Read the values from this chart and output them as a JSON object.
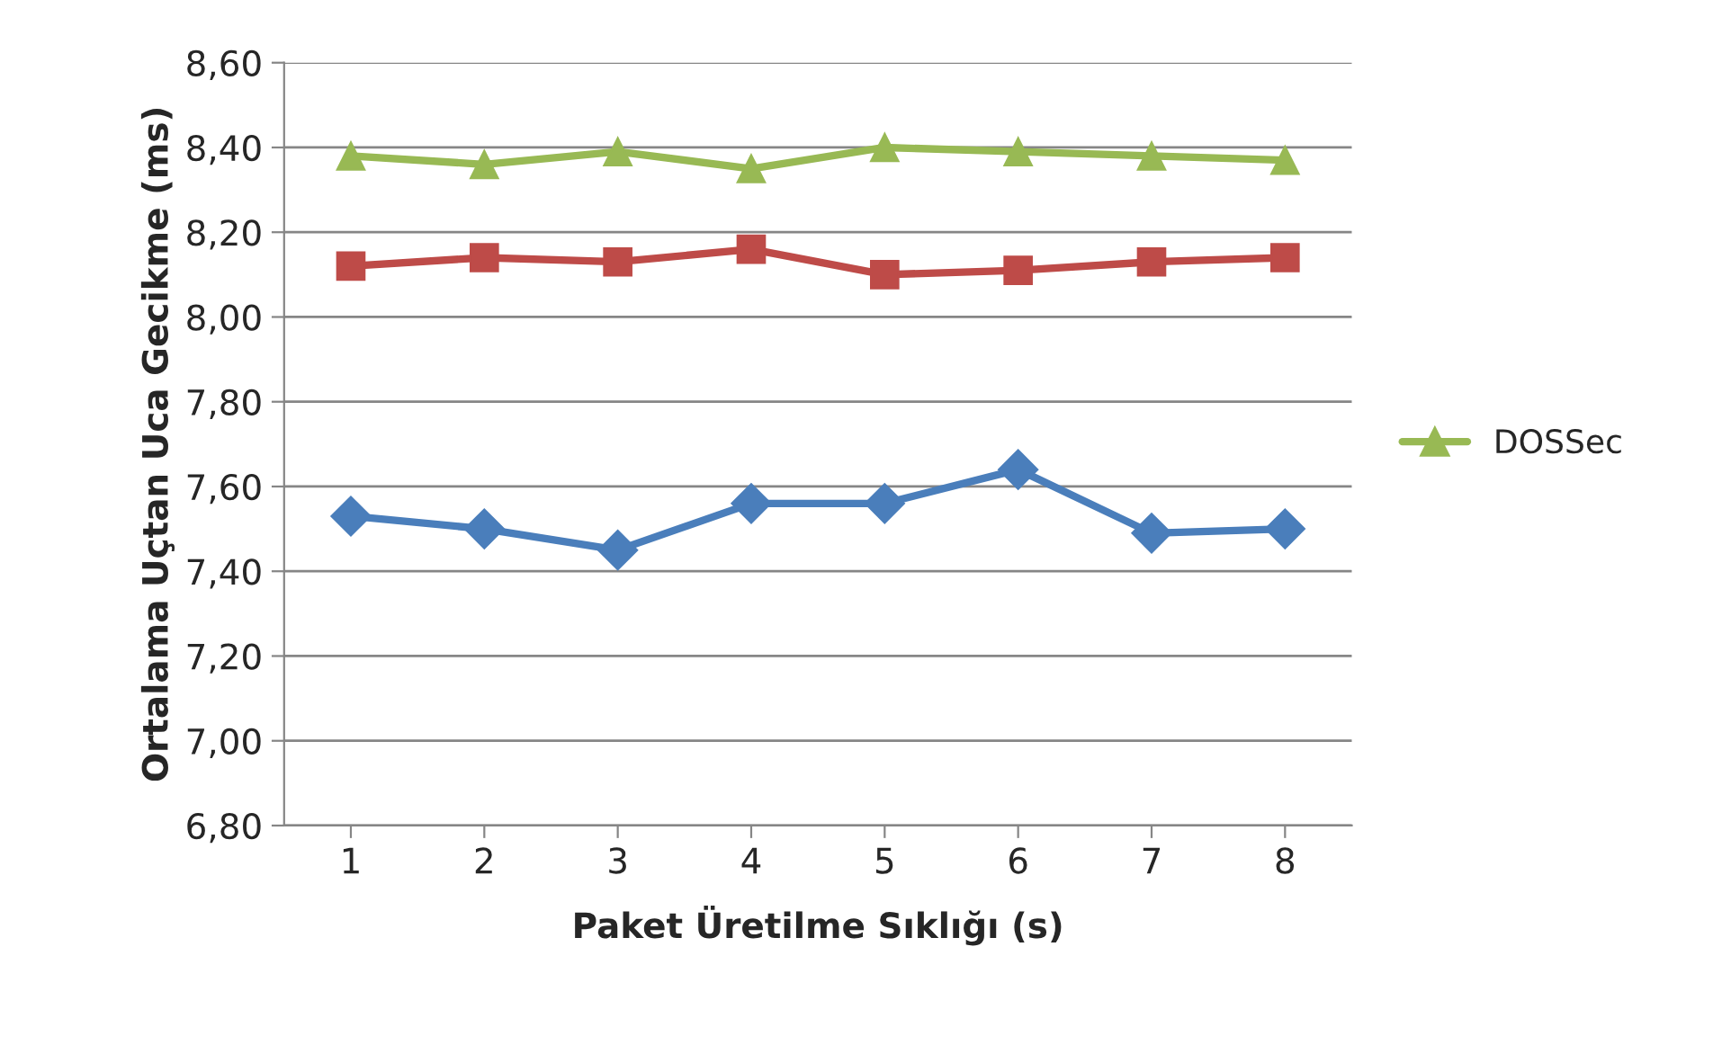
{
  "chart_data": {
    "type": "line",
    "xlabel": "Paket Üretilme Sıklığı (s)",
    "ylabel": "Ortalama Uçtan Uca Gecikme (ms)",
    "categories": [
      "1",
      "2",
      "3",
      "4",
      "5",
      "6",
      "7",
      "8"
    ],
    "series": [
      {
        "color": "#4a7ebb",
        "marker": "diamond",
        "values": [
          7.53,
          7.5,
          7.45,
          7.56,
          7.56,
          7.64,
          7.49,
          7.5
        ]
      },
      {
        "color": "#be4b48",
        "marker": "square",
        "values": [
          8.12,
          8.14,
          8.13,
          8.16,
          8.1,
          8.11,
          8.13,
          8.14
        ]
      },
      {
        "name": "DOSSec",
        "color": "#98b954",
        "marker": "triangle",
        "values": [
          8.38,
          8.36,
          8.39,
          8.35,
          8.4,
          8.39,
          8.38,
          8.37
        ]
      }
    ],
    "ylim": [
      6.8,
      8.6
    ],
    "yticks": [
      {
        "value": 6.8,
        "label": "6,80"
      },
      {
        "value": 7.0,
        "label": "7,00"
      },
      {
        "value": 7.2,
        "label": "7,20"
      },
      {
        "value": 7.4,
        "label": "7,40"
      },
      {
        "value": 7.6,
        "label": "7,60"
      },
      {
        "value": 7.8,
        "label": "7,80"
      },
      {
        "value": 8.0,
        "label": "8,00"
      },
      {
        "value": 8.2,
        "label": "8,20"
      },
      {
        "value": 8.4,
        "label": "8,40"
      },
      {
        "value": 8.6,
        "label": "8,60"
      }
    ],
    "grid": "y",
    "legend": "right",
    "line_style": "solid"
  }
}
